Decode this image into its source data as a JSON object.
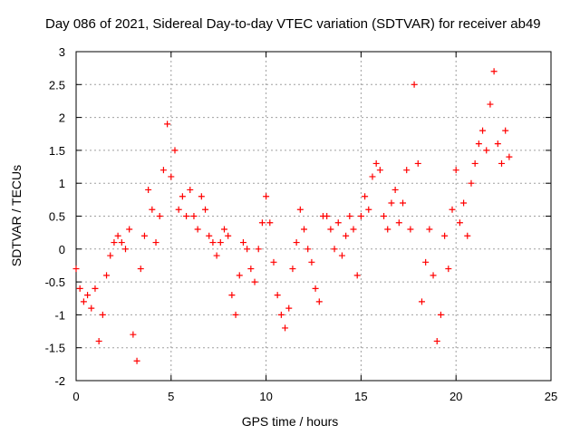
{
  "chart_data": {
    "type": "scatter",
    "title": "Day 086 of 2021, Sidereal Day-to-day VTEC variation (SDTVAR) for receiver ab49",
    "xlabel": "GPS time / hours",
    "ylabel": "SDTVAR / TECUs",
    "xlim": [
      0,
      25
    ],
    "ylim": [
      -2,
      3
    ],
    "xticks": [
      "0",
      "5",
      "10",
      "15",
      "20",
      "25"
    ],
    "yticks": [
      "-2",
      "-1.5",
      "-1",
      "-0.5",
      "0",
      "0.5",
      "1",
      "1.5",
      "2",
      "2.5",
      "3"
    ],
    "grid": true,
    "marker": "+",
    "color": "#ff0000",
    "series": [
      {
        "name": "SDTVAR",
        "points": [
          [
            0.0,
            -0.3
          ],
          [
            0.2,
            -0.6
          ],
          [
            0.4,
            -0.8
          ],
          [
            0.6,
            -0.7
          ],
          [
            0.8,
            -0.9
          ],
          [
            1.0,
            -0.6
          ],
          [
            1.2,
            -1.4
          ],
          [
            1.4,
            -1.0
          ],
          [
            1.6,
            -0.4
          ],
          [
            1.8,
            -0.1
          ],
          [
            2.0,
            0.1
          ],
          [
            2.2,
            0.2
          ],
          [
            2.4,
            0.1
          ],
          [
            2.6,
            0.0
          ],
          [
            2.8,
            0.3
          ],
          [
            3.0,
            -1.3
          ],
          [
            3.2,
            -1.7
          ],
          [
            3.4,
            -0.3
          ],
          [
            3.6,
            0.2
          ],
          [
            3.8,
            0.9
          ],
          [
            4.0,
            0.6
          ],
          [
            4.2,
            0.1
          ],
          [
            4.4,
            0.5
          ],
          [
            4.6,
            1.2
          ],
          [
            4.8,
            1.9
          ],
          [
            5.0,
            1.1
          ],
          [
            5.2,
            1.5
          ],
          [
            5.4,
            0.6
          ],
          [
            5.6,
            0.8
          ],
          [
            5.8,
            0.5
          ],
          [
            6.0,
            0.9
          ],
          [
            6.2,
            0.5
          ],
          [
            6.4,
            0.3
          ],
          [
            6.6,
            0.8
          ],
          [
            6.8,
            0.6
          ],
          [
            7.0,
            0.2
          ],
          [
            7.2,
            0.1
          ],
          [
            7.4,
            -0.1
          ],
          [
            7.6,
            0.1
          ],
          [
            7.8,
            0.3
          ],
          [
            8.0,
            0.2
          ],
          [
            8.2,
            -0.7
          ],
          [
            8.4,
            -1.0
          ],
          [
            8.6,
            -0.4
          ],
          [
            8.8,
            0.1
          ],
          [
            9.0,
            0.0
          ],
          [
            9.2,
            -0.3
          ],
          [
            9.4,
            -0.5
          ],
          [
            9.6,
            0.0
          ],
          [
            9.8,
            0.4
          ],
          [
            10.0,
            0.8
          ],
          [
            10.2,
            0.4
          ],
          [
            10.4,
            -0.2
          ],
          [
            10.6,
            -0.7
          ],
          [
            10.8,
            -1.0
          ],
          [
            11.0,
            -1.2
          ],
          [
            11.2,
            -0.9
          ],
          [
            11.4,
            -0.3
          ],
          [
            11.6,
            0.1
          ],
          [
            11.8,
            0.6
          ],
          [
            12.0,
            0.3
          ],
          [
            12.2,
            0.0
          ],
          [
            12.4,
            -0.2
          ],
          [
            12.6,
            -0.6
          ],
          [
            12.8,
            -0.8
          ],
          [
            13.0,
            0.5
          ],
          [
            13.2,
            0.5
          ],
          [
            13.4,
            0.3
          ],
          [
            13.6,
            0.0
          ],
          [
            13.8,
            0.4
          ],
          [
            14.0,
            -0.1
          ],
          [
            14.2,
            0.2
          ],
          [
            14.4,
            0.5
          ],
          [
            14.6,
            0.3
          ],
          [
            14.8,
            -0.4
          ],
          [
            15.0,
            0.5
          ],
          [
            15.2,
            0.8
          ],
          [
            15.4,
            0.6
          ],
          [
            15.6,
            1.1
          ],
          [
            15.8,
            1.3
          ],
          [
            16.0,
            1.2
          ],
          [
            16.2,
            0.5
          ],
          [
            16.4,
            0.3
          ],
          [
            16.6,
            0.7
          ],
          [
            16.8,
            0.9
          ],
          [
            17.0,
            0.4
          ],
          [
            17.2,
            0.7
          ],
          [
            17.4,
            1.2
          ],
          [
            17.6,
            0.3
          ],
          [
            17.8,
            2.5
          ],
          [
            18.0,
            1.3
          ],
          [
            18.2,
            -0.8
          ],
          [
            18.4,
            -0.2
          ],
          [
            18.6,
            0.3
          ],
          [
            18.8,
            -0.4
          ],
          [
            19.0,
            -1.4
          ],
          [
            19.2,
            -1.0
          ],
          [
            19.4,
            0.2
          ],
          [
            19.6,
            -0.3
          ],
          [
            19.8,
            0.6
          ],
          [
            20.0,
            1.2
          ],
          [
            20.2,
            0.4
          ],
          [
            20.4,
            0.7
          ],
          [
            20.6,
            0.2
          ],
          [
            20.8,
            1.0
          ],
          [
            21.0,
            1.3
          ],
          [
            21.2,
            1.6
          ],
          [
            21.4,
            1.8
          ],
          [
            21.6,
            1.5
          ],
          [
            21.8,
            2.2
          ],
          [
            22.0,
            2.7
          ],
          [
            22.2,
            1.6
          ],
          [
            22.4,
            1.3
          ],
          [
            22.6,
            1.8
          ],
          [
            22.8,
            1.4
          ]
        ]
      }
    ]
  }
}
